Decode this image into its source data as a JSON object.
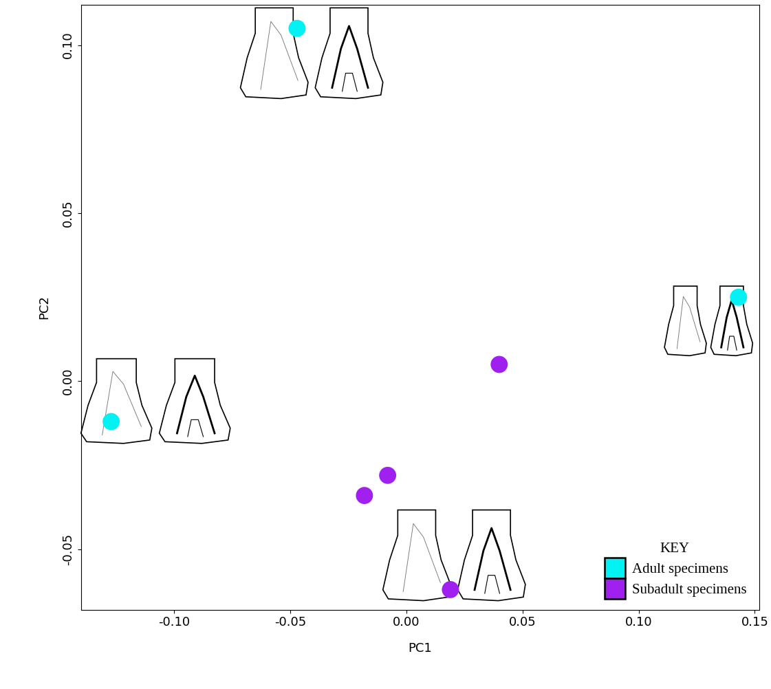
{
  "chart_data": {
    "type": "scatter",
    "x_label": "PC1",
    "y_label": "PC2",
    "series": [
      {
        "name": "Adult specimens",
        "color": "#00f2f2",
        "marker": "o",
        "x": [
          -0.047,
          0.143,
          -0.127
        ],
        "values": [
          0.105,
          0.025,
          -0.012
        ]
      },
      {
        "name": "Subadult specimens",
        "color": "#a020f0",
        "marker": "o",
        "x": [
          0.04,
          -0.008,
          -0.018,
          0.019
        ],
        "values": [
          0.005,
          -0.028,
          -0.034,
          -0.062
        ]
      }
    ],
    "xlim": [
      -0.14,
      0.152
    ],
    "ylim": [
      -0.068,
      0.112
    ],
    "xticks": [
      {
        "value": -0.1,
        "label": "-0.10"
      },
      -0.05,
      {
        "value": 0.0,
        "label": "0.00"
      },
      0.05,
      {
        "value": 0.1,
        "label": "0.10"
      },
      0.15
    ],
    "yticks": [
      -0.05,
      {
        "value": 0.0,
        "label": "0.00"
      },
      0.05,
      {
        "value": 0.1,
        "label": "0.10"
      }
    ],
    "legend": "lower right",
    "legend_title": "KEY",
    "grid": false
  }
}
